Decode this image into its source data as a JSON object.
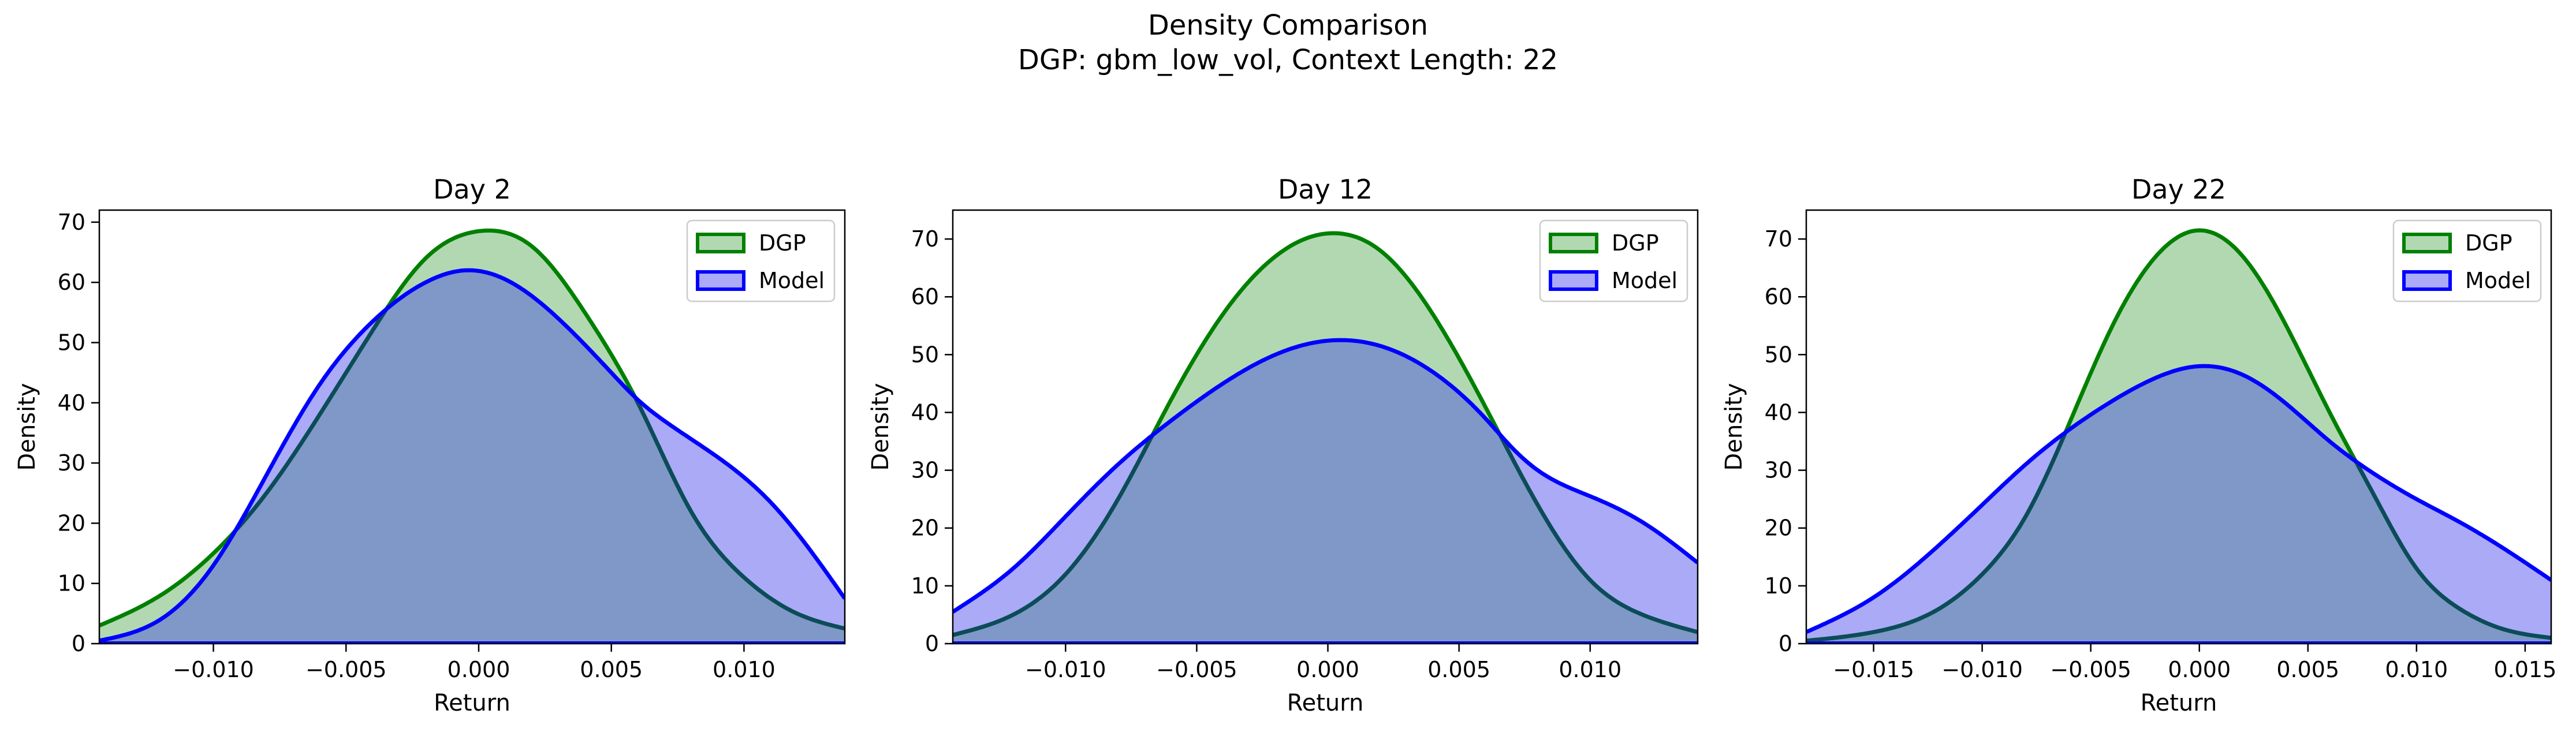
{
  "figure": {
    "suptitle": [
      "Density Comparison",
      "DGP: gbm_low_vol, Context Length: 22"
    ]
  },
  "colors": {
    "dgp_line": "#008000",
    "dgp_fill": "#b2d8b2",
    "model_line": "#0000ff",
    "model_fill": "#aaaaf7",
    "overlap_fill": "#7f98c8",
    "overlap_line": "#0c4c5a"
  },
  "chart_data": [
    {
      "type": "area",
      "title": "Day 2",
      "xlabel": "Return",
      "ylabel": "Density",
      "xlim": [
        -0.0143,
        0.0138
      ],
      "ylim": [
        0,
        72
      ],
      "xticks": [
        -0.01,
        -0.005,
        0.0,
        0.005,
        0.01
      ],
      "xtick_labels": [
        "−0.010",
        "−0.005",
        "0.000",
        "0.005",
        "0.010"
      ],
      "yticks": [
        0,
        10,
        20,
        30,
        40,
        50,
        60,
        70
      ],
      "grid": false,
      "legend": "top-right",
      "series": [
        {
          "name": "DGP",
          "x": [
            -0.0143,
            -0.012,
            -0.01,
            -0.008,
            -0.006,
            -0.004,
            -0.002,
            0,
            0.002,
            0.004,
            0.005,
            0.006,
            0.008,
            0.01,
            0.012,
            0.0138
          ],
          "y": [
            3,
            8,
            15,
            25,
            38,
            52,
            64,
            68.5,
            66,
            55,
            48,
            40,
            22,
            11,
            5,
            2.5
          ]
        },
        {
          "name": "Model",
          "x": [
            -0.0143,
            -0.012,
            -0.01,
            -0.008,
            -0.006,
            -0.004,
            -0.002,
            -0.0005,
            0.001,
            0.003,
            0.005,
            0.006,
            0.007,
            0.009,
            0.011,
            0.0125,
            0.0138
          ],
          "y": [
            0.5,
            4,
            13,
            28,
            43,
            53.5,
            60,
            62,
            60.5,
            54,
            45,
            40.5,
            37,
            31,
            23.5,
            15.5,
            7.5
          ]
        }
      ]
    },
    {
      "type": "area",
      "title": "Day 12",
      "xlabel": "Return",
      "ylabel": "Density",
      "xlim": [
        -0.0143,
        0.0141
      ],
      "ylim": [
        0,
        75
      ],
      "xticks": [
        -0.01,
        -0.005,
        0.0,
        0.005,
        0.01
      ],
      "xtick_labels": [
        "−0.010",
        "−0.005",
        "0.000",
        "0.005",
        "0.010"
      ],
      "yticks": [
        0,
        10,
        20,
        30,
        40,
        50,
        60,
        70
      ],
      "grid": false,
      "legend": "top-right",
      "series": [
        {
          "name": "DGP",
          "x": [
            -0.0143,
            -0.012,
            -0.01,
            -0.008,
            -0.006,
            -0.004,
            -0.002,
            0.0003,
            0.002,
            0.004,
            0.006,
            0.008,
            0.01,
            0.012,
            0.0141
          ],
          "y": [
            1.5,
            5,
            12,
            25,
            42,
            57,
            67,
            71,
            68,
            57,
            41,
            24,
            11,
            5,
            2
          ]
        },
        {
          "name": "Model",
          "x": [
            -0.0143,
            -0.012,
            -0.01,
            -0.008,
            -0.006,
            -0.004,
            -0.002,
            0.0003,
            0.002,
            0.004,
            0.006,
            0.007,
            0.008,
            0.01,
            0.012,
            0.0141
          ],
          "y": [
            5.5,
            13,
            22,
            31,
            38.5,
            45,
            50,
            52.5,
            51.5,
            47,
            39,
            34,
            30,
            25.5,
            21,
            14
          ]
        }
      ]
    },
    {
      "type": "area",
      "title": "Day 22",
      "xlabel": "Return",
      "ylabel": "Density",
      "xlim": [
        -0.0181,
        0.0162
      ],
      "ylim": [
        0,
        75
      ],
      "xticks": [
        -0.015,
        -0.01,
        -0.005,
        0.0,
        0.005,
        0.01,
        0.015
      ],
      "xtick_labels": [
        "−0.015",
        "−0.010",
        "−0.005",
        "0.000",
        "0.005",
        "0.010",
        "0.015"
      ],
      "yticks": [
        0,
        10,
        20,
        30,
        40,
        50,
        60,
        70
      ],
      "grid": false,
      "legend": "top-right",
      "series": [
        {
          "name": "DGP",
          "x": [
            -0.0181,
            -0.015,
            -0.012,
            -0.01,
            -0.008,
            -0.006,
            -0.004,
            -0.002,
            0,
            0.002,
            0.004,
            0.006,
            0.008,
            0.01,
            0.012,
            0.014,
            0.0162
          ],
          "y": [
            0.5,
            2,
            6,
            12,
            22,
            38,
            55,
            67,
            71.5,
            67,
            55,
            40,
            26,
            13,
            6,
            2.5,
            1
          ]
        },
        {
          "name": "Model",
          "x": [
            -0.0181,
            -0.015,
            -0.012,
            -0.01,
            -0.008,
            -0.006,
            -0.004,
            -0.002,
            0,
            0.002,
            0.004,
            0.006,
            0.008,
            0.01,
            0.012,
            0.014,
            0.0162
          ],
          "y": [
            2,
            8,
            17,
            24,
            31,
            37,
            42,
            46,
            48,
            46.5,
            41.5,
            35,
            29.5,
            25,
            21,
            16.5,
            11
          ]
        }
      ]
    }
  ]
}
